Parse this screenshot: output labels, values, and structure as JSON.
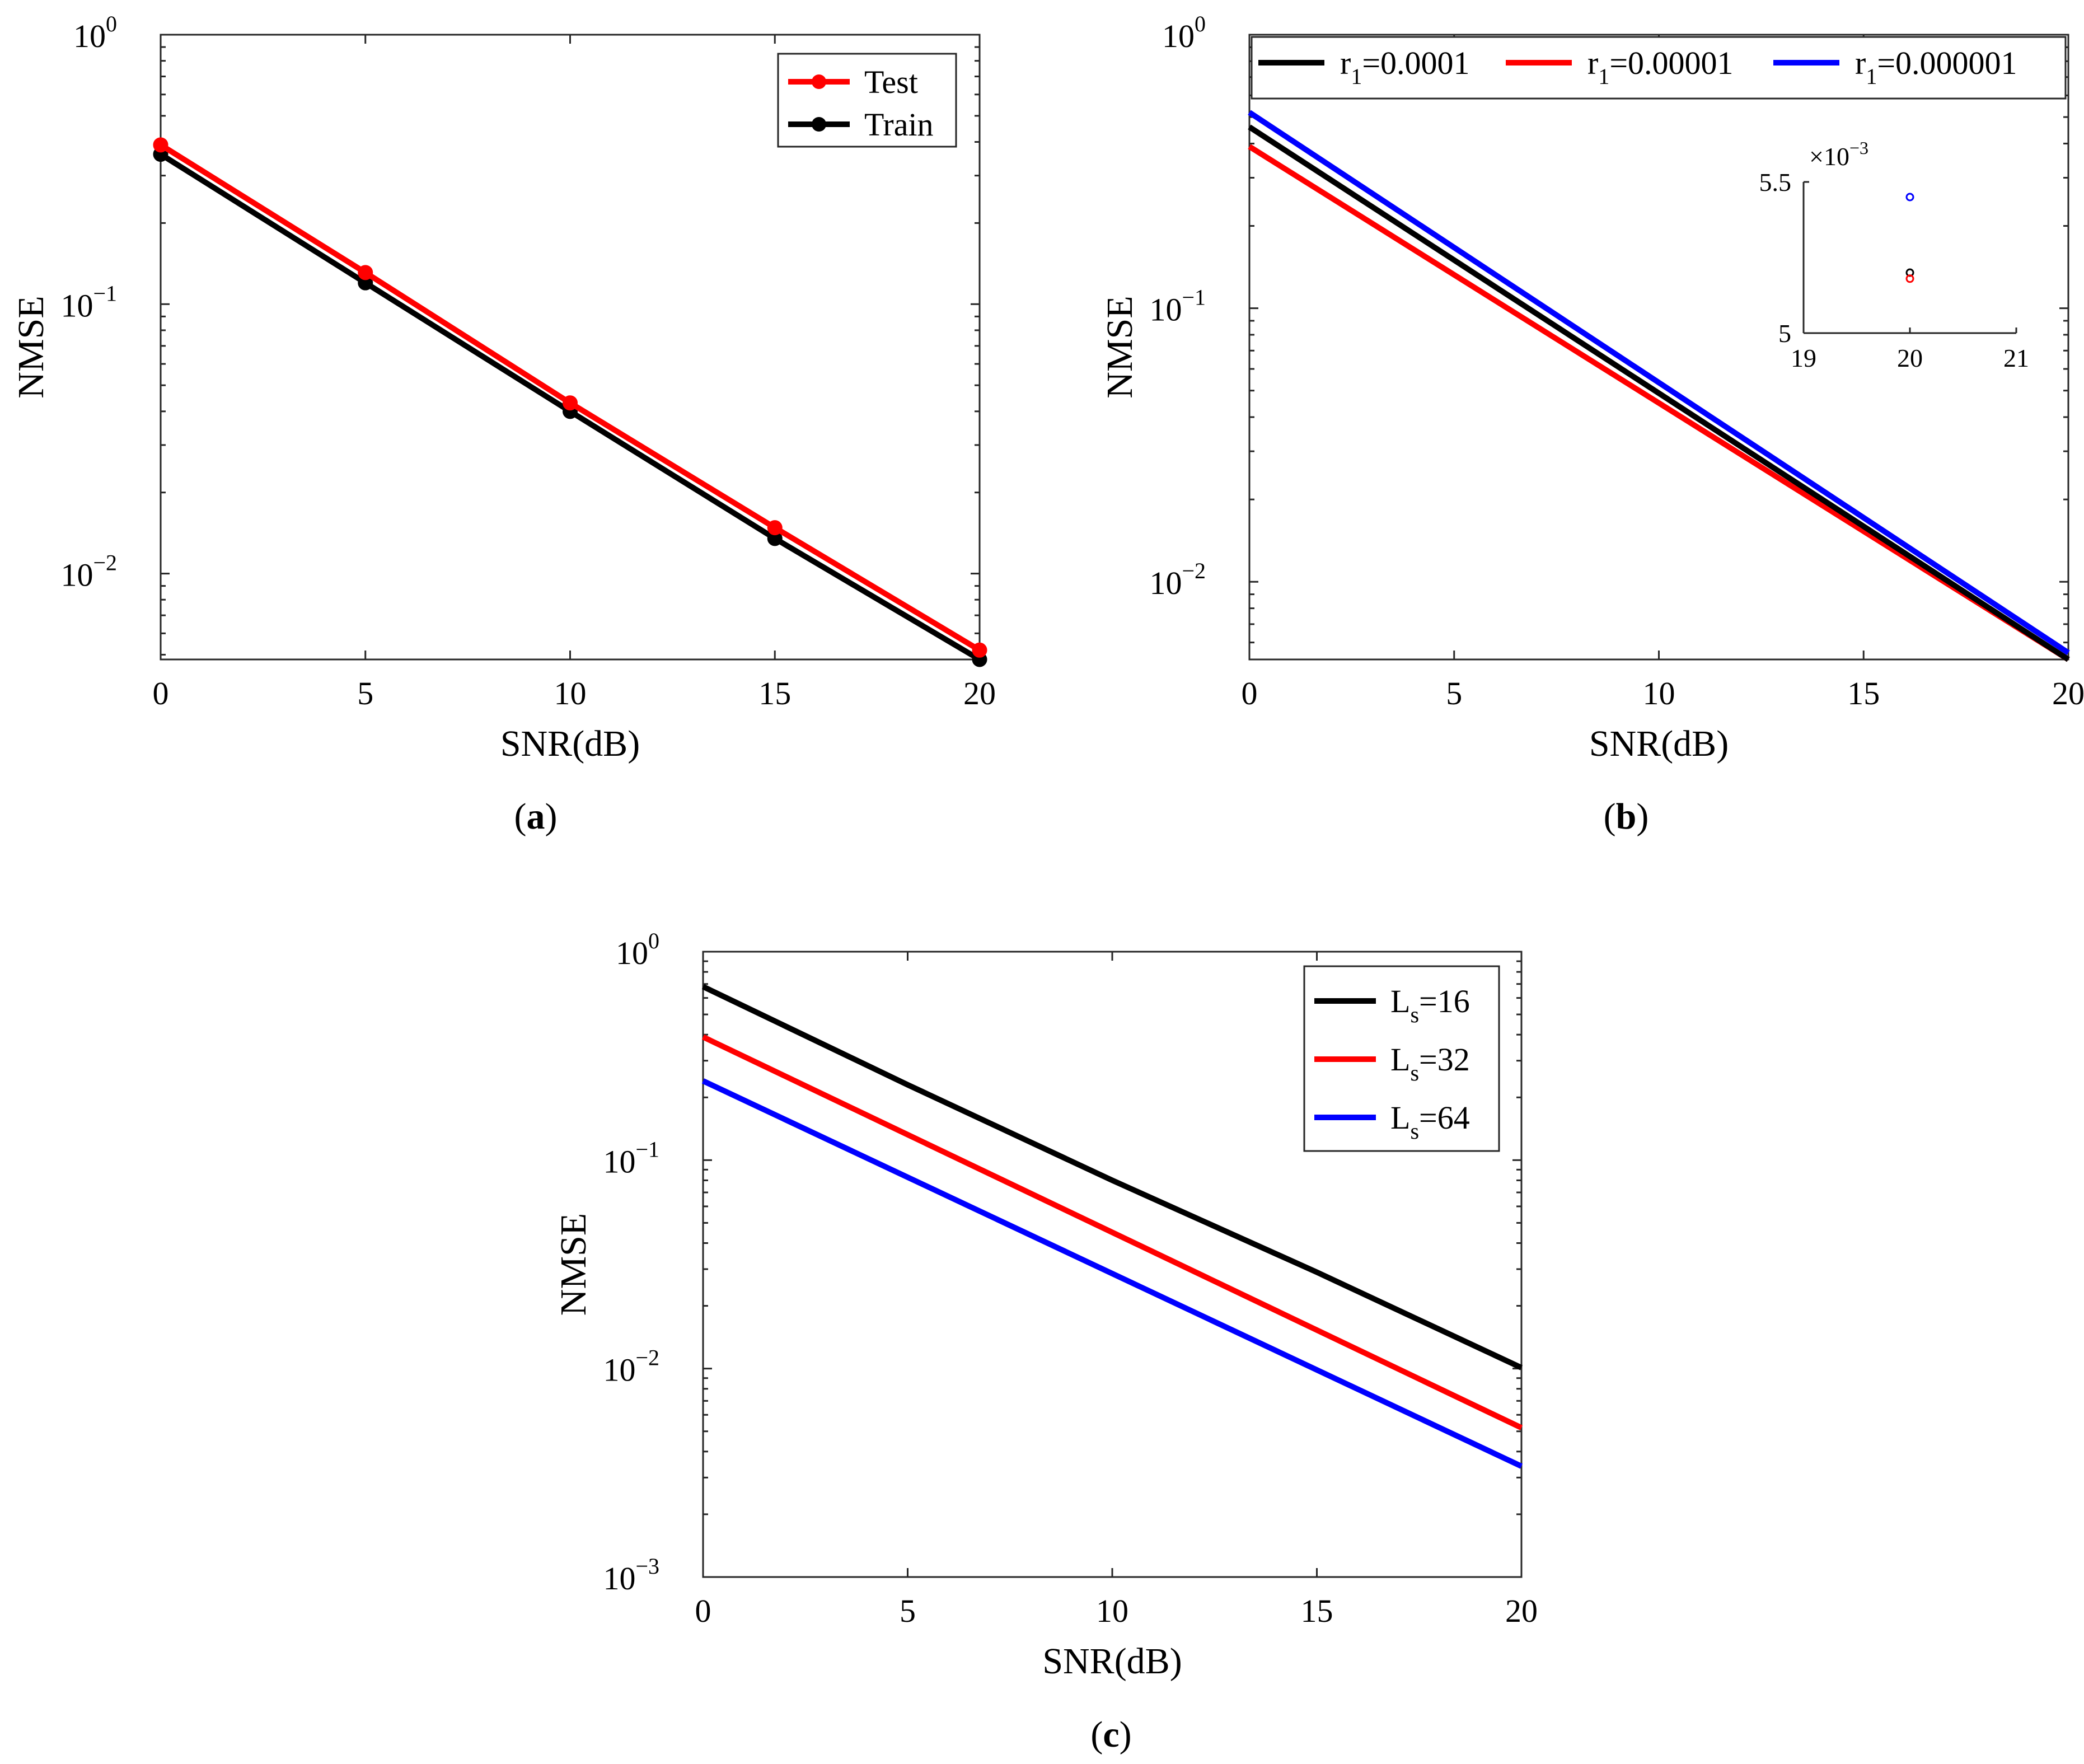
{
  "colors": {
    "black": "#000000",
    "red": "#ff0000",
    "blue": "#0000ff",
    "axis": "#262626"
  },
  "chart_data": [
    {
      "id": "a",
      "type": "line",
      "caption": "(a)",
      "xlabel": "SNR(dB)",
      "ylabel": "NMSE",
      "yscale": "log",
      "xlim": [
        0,
        20
      ],
      "ylim": [
        0.0048,
        1
      ],
      "xticks": [
        0,
        5,
        10,
        15,
        20
      ],
      "xtick_labels": [
        "0",
        "5",
        "10",
        "15",
        "20"
      ],
      "yticks": [
        1,
        0.1,
        0.01
      ],
      "ytick_labels": [
        {
          "base": "10",
          "exp": "0"
        },
        {
          "base": "10",
          "exp": "−1"
        },
        {
          "base": "10",
          "exp": "−2"
        }
      ],
      "legend_position": "top-right",
      "markers": true,
      "series": [
        {
          "name": "Test",
          "color": "red",
          "x": [
            0,
            5,
            10,
            15,
            20
          ],
          "values": [
            0.39,
            0.131,
            0.043,
            0.0148,
            0.0052
          ]
        },
        {
          "name": "Train",
          "color": "black",
          "x": [
            0,
            5,
            10,
            15,
            20
          ],
          "values": [
            0.36,
            0.12,
            0.04,
            0.0135,
            0.0048
          ]
        }
      ]
    },
    {
      "id": "b",
      "type": "line",
      "caption": "(b)",
      "xlabel": "SNR(dB)",
      "ylabel": "NMSE",
      "yscale": "log",
      "xlim": [
        0,
        20
      ],
      "ylim": [
        0.0052,
        1
      ],
      "xticks": [
        0,
        5,
        10,
        15,
        20
      ],
      "xtick_labels": [
        "0",
        "5",
        "10",
        "15",
        "20"
      ],
      "yticks": [
        1,
        0.1,
        0.01
      ],
      "ytick_labels": [
        {
          "base": "10",
          "exp": "0"
        },
        {
          "base": "10",
          "exp": "−1"
        },
        {
          "base": "10",
          "exp": "−2"
        }
      ],
      "legend_position": "top (horizontal)",
      "markers": false,
      "series": [
        {
          "name": "r1=0.0001",
          "legend": {
            "base": "r",
            "sub": "1",
            "rest": "=0.0001"
          },
          "color": "black",
          "x": [
            0,
            20
          ],
          "values": [
            0.46,
            0.0052
          ]
        },
        {
          "name": "r1=0.00001",
          "legend": {
            "base": "r",
            "sub": "1",
            "rest": "=0.00001"
          },
          "color": "red",
          "x": [
            0,
            20
          ],
          "values": [
            0.39,
            0.0052
          ]
        },
        {
          "name": "r1=0.000001",
          "legend": {
            "base": "r",
            "sub": "1",
            "rest": "=0.000001"
          },
          "color": "blue",
          "x": [
            0,
            20
          ],
          "values": [
            0.52,
            0.0055
          ]
        }
      ],
      "inset": {
        "type": "scatter",
        "xlim": [
          19,
          21
        ],
        "ylim": [
          5.0,
          5.5
        ],
        "xticks": [
          19,
          20,
          21
        ],
        "xtick_labels": [
          "19",
          "20",
          "21"
        ],
        "yticks": [
          5.0,
          5.5
        ],
        "ytick_labels": [
          "5",
          "5.5"
        ],
        "exponent_label": {
          "prefix": "×10",
          "exp": "−3"
        },
        "points": [
          {
            "name": "r1=0.000001",
            "color": "blue",
            "x": 20,
            "y": 5.45
          },
          {
            "name": "r1=0.0001",
            "color": "black",
            "x": 20,
            "y": 5.2
          },
          {
            "name": "r1=0.00001",
            "color": "red",
            "x": 20,
            "y": 5.18
          }
        ]
      }
    },
    {
      "id": "c",
      "type": "line",
      "caption": "(c)",
      "xlabel": "SNR(dB)",
      "ylabel": "NMSE",
      "yscale": "log",
      "xlim": [
        0,
        20
      ],
      "ylim": [
        0.001,
        1
      ],
      "xticks": [
        0,
        5,
        10,
        15,
        20
      ],
      "xtick_labels": [
        "0",
        "5",
        "10",
        "15",
        "20"
      ],
      "yticks": [
        1,
        0.1,
        0.01,
        0.001
      ],
      "ytick_labels": [
        {
          "base": "10",
          "exp": "0"
        },
        {
          "base": "10",
          "exp": "−1"
        },
        {
          "base": "10",
          "exp": "−2"
        },
        {
          "base": "10",
          "exp": "−3"
        }
      ],
      "legend_position": "top-right",
      "markers": false,
      "series": [
        {
          "name": "Ls=16",
          "legend": {
            "base": "L",
            "sub": "s",
            "rest": "=16"
          },
          "color": "black",
          "x": [
            0,
            5,
            10,
            15,
            20
          ],
          "values": [
            0.68,
            0.23,
            0.08,
            0.029,
            0.0101
          ]
        },
        {
          "name": "Ls=32",
          "legend": {
            "base": "L",
            "sub": "s",
            "rest": "=32"
          },
          "color": "red",
          "x": [
            0,
            20
          ],
          "values": [
            0.39,
            0.0052
          ]
        },
        {
          "name": "Ls=64",
          "legend": {
            "base": "L",
            "sub": "s",
            "rest": "=64"
          },
          "color": "blue",
          "x": [
            0,
            20
          ],
          "values": [
            0.24,
            0.0034
          ]
        }
      ]
    }
  ]
}
